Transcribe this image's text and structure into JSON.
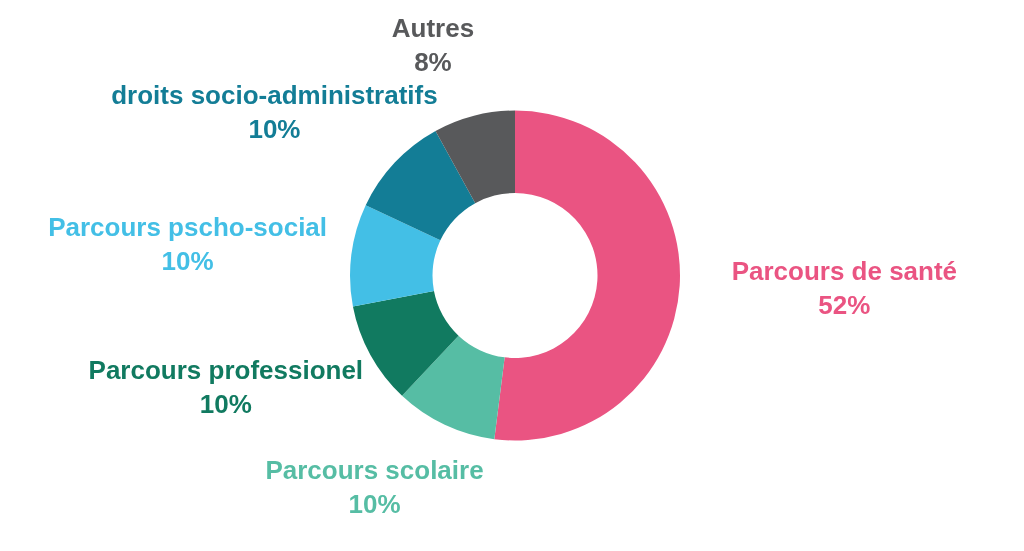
{
  "chart_data": {
    "type": "donut",
    "categories": [
      "Parcours de santé",
      "Parcours scolaire",
      "Parcours professionel",
      "Parcours pscho-social",
      "droits socio-administratifs",
      "Autres"
    ],
    "values": [
      52,
      10,
      10,
      10,
      10,
      8
    ],
    "value_labels": [
      "52%",
      "10%",
      "10%",
      "10%",
      "10%",
      "8%"
    ],
    "colors": [
      "#ea5482",
      "#56bda4",
      "#117a60",
      "#43bfe6",
      "#137d96",
      "#58595b"
    ]
  }
}
